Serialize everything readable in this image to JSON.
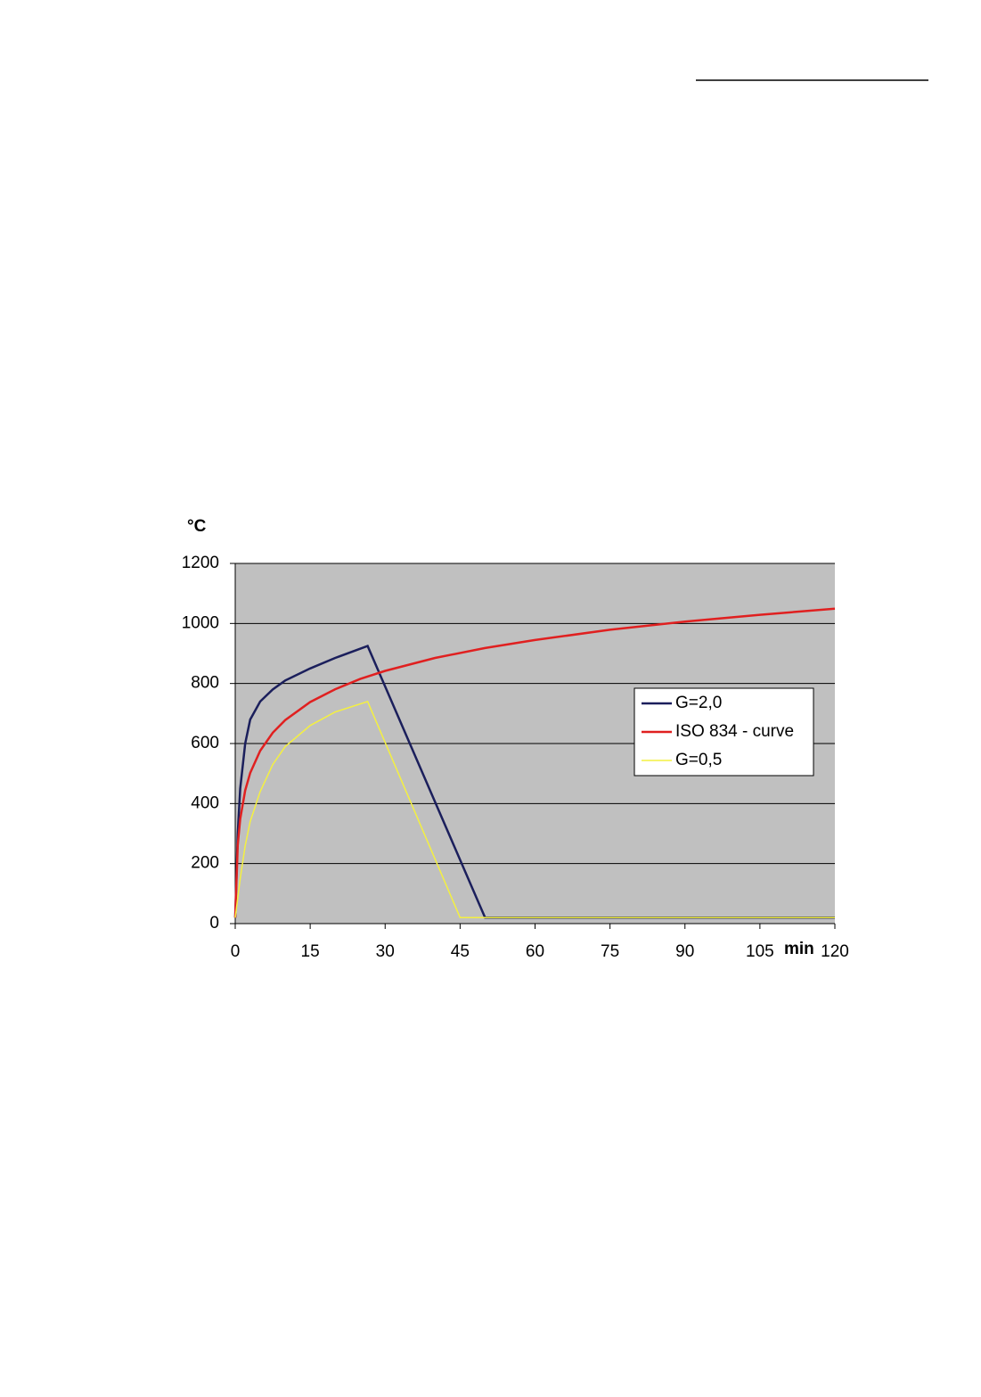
{
  "chart_data": {
    "type": "line",
    "y_label": "°C",
    "x_label": "min",
    "xlim": [
      0,
      120
    ],
    "xticks": [
      0,
      15,
      30,
      45,
      60,
      75,
      90,
      105,
      120
    ],
    "ylim": [
      0,
      1200
    ],
    "yticks": [
      0,
      200,
      400,
      600,
      800,
      1000,
      1200
    ],
    "grid": true,
    "plot_background": "#c0c0c0",
    "legend": "center-right",
    "series": [
      {
        "name": "G=2,0",
        "color": "#1b1f5c",
        "x": [
          0,
          0.5,
          1,
          2,
          3,
          5,
          7.5,
          10,
          15,
          20,
          26.5,
          50,
          120
        ],
        "values": [
          20,
          300,
          450,
          600,
          680,
          740,
          780,
          810,
          850,
          885,
          925,
          20,
          20
        ]
      },
      {
        "name": "ISO 834 - curve",
        "color": "#e02020",
        "x": [
          0,
          0.5,
          1,
          2,
          3,
          5,
          7.5,
          10,
          15,
          20,
          25,
          30,
          40,
          50,
          60,
          75,
          90,
          105,
          120
        ],
        "values": [
          20,
          261,
          349,
          444,
          502,
          576,
          636,
          678,
          738,
          781,
          815,
          842,
          885,
          918,
          945,
          979,
          1006,
          1029,
          1049
        ]
      },
      {
        "name": "G=0,5",
        "color": "#f4f040",
        "x": [
          0,
          1,
          2,
          3,
          5,
          7.5,
          10,
          15,
          20,
          26.5,
          45,
          120
        ],
        "values": [
          20,
          150,
          260,
          340,
          440,
          530,
          590,
          660,
          705,
          740,
          20,
          20
        ]
      }
    ]
  }
}
